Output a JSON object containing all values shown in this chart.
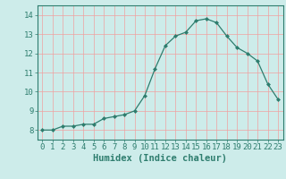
{
  "x": [
    0,
    1,
    2,
    3,
    4,
    5,
    6,
    7,
    8,
    9,
    10,
    11,
    12,
    13,
    14,
    15,
    16,
    17,
    18,
    19,
    20,
    21,
    22,
    23
  ],
  "y": [
    8.0,
    8.0,
    8.2,
    8.2,
    8.3,
    8.3,
    8.6,
    8.7,
    8.8,
    9.0,
    9.8,
    11.2,
    12.4,
    12.9,
    13.1,
    13.7,
    13.8,
    13.6,
    12.9,
    12.3,
    12.0,
    11.6,
    10.4,
    9.6
  ],
  "xlabel": "Humidex (Indice chaleur)",
  "ylim": [
    7.5,
    14.5
  ],
  "xlim": [
    -0.5,
    23.5
  ],
  "yticks": [
    8,
    9,
    10,
    11,
    12,
    13,
    14
  ],
  "xticks": [
    0,
    1,
    2,
    3,
    4,
    5,
    6,
    7,
    8,
    9,
    10,
    11,
    12,
    13,
    14,
    15,
    16,
    17,
    18,
    19,
    20,
    21,
    22,
    23
  ],
  "line_color": "#2e7d6e",
  "marker_color": "#2e7d6e",
  "bg_color": "#cdecea",
  "grid_color": "#f0a0a0",
  "axes_color": "#2e7d6e",
  "xlabel_fontsize": 7.5,
  "tick_fontsize": 6.5
}
